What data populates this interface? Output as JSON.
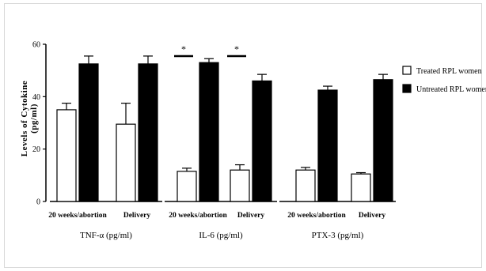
{
  "chart_data": {
    "type": "bar",
    "ylabel_line1": "Levels of Cytokine",
    "ylabel_line2": "(pg/ml)",
    "ylim": [
      0,
      60
    ],
    "yticks": [
      "0",
      "20",
      "40",
      "60"
    ],
    "groups": [
      {
        "label": "TNF-α (pg/ml)",
        "categories": [
          "20 weeks/abortion",
          "Delivery"
        ]
      },
      {
        "label": "IL-6 (pg/ml)",
        "categories": [
          "20 weeks/abortion",
          "Delivery"
        ]
      },
      {
        "label": "PTX-3 (pg/ml)",
        "categories": [
          "20 weeks/abortion",
          "Delivery"
        ]
      }
    ],
    "series": [
      {
        "name": "Treated RPL women",
        "color": "#ffffff",
        "values": [
          35,
          29.5,
          11.5,
          12,
          12,
          10.5
        ],
        "errors": [
          2.5,
          8,
          1.2,
          2,
          1,
          0.5
        ]
      },
      {
        "name": "Untreated RPL women",
        "color": "#000000",
        "values": [
          52.5,
          52.5,
          53,
          46,
          42.5,
          46.5
        ],
        "errors": [
          3,
          3,
          1.5,
          2.5,
          1.5,
          2
        ]
      }
    ],
    "significance": [
      {
        "category_index": 2,
        "label": "*"
      },
      {
        "category_index": 3,
        "label": "*"
      }
    ],
    "legend_position": "top-right"
  }
}
